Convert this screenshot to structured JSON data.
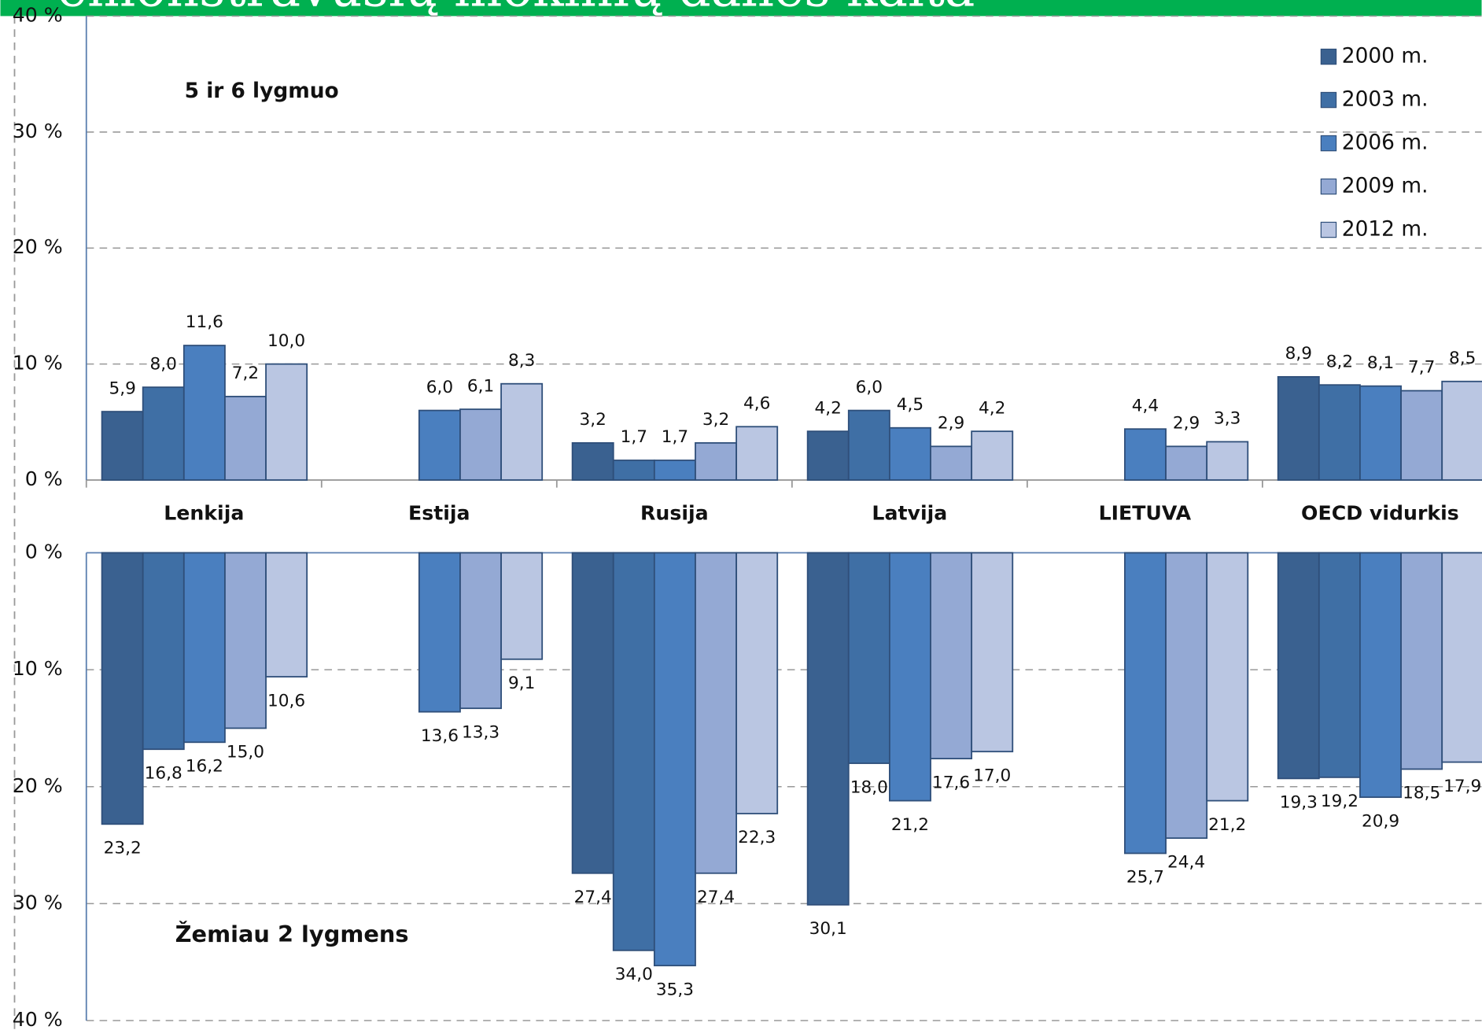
{
  "chart_data": [
    {
      "type": "bar",
      "title": "emonstravusių mokinių dalies kaita",
      "subtitle": "5 ir 6 lygmuo",
      "categories": [
        "Lenkija",
        "Estija",
        "Rusija",
        "Latvija",
        "LIETUVA",
        "OECD vidurkis"
      ],
      "series": [
        {
          "name": "2000 m.",
          "color": "#3a6190",
          "values": [
            5.9,
            null,
            3.2,
            4.2,
            null,
            8.9
          ],
          "value_labels": [
            "5,9",
            null,
            "3,2",
            "4,2",
            null,
            "8,9"
          ]
        },
        {
          "name": "2003 m.",
          "color": "#3f6fa5",
          "values": [
            8.0,
            null,
            1.7,
            6.0,
            null,
            8.2
          ],
          "value_labels": [
            "8,0",
            null,
            "1,7",
            "6,0",
            null,
            "8,2"
          ]
        },
        {
          "name": "2006 m.",
          "color": "#4a7fbf",
          "values": [
            11.6,
            6.0,
            1.7,
            4.5,
            4.4,
            8.1
          ],
          "value_labels": [
            "11,6",
            "6,0",
            "1,7",
            "4,5",
            "4,4",
            "8,1"
          ]
        },
        {
          "name": "2009 m.",
          "color": "#94a9d4",
          "values": [
            7.2,
            6.1,
            3.2,
            2.9,
            2.9,
            7.7
          ],
          "value_labels": [
            "7,2",
            "6,1",
            "3,2",
            "2,9",
            "2,9",
            "7,7"
          ]
        },
        {
          "name": "2012 m.",
          "color": "#bac6e2",
          "values": [
            10.0,
            8.3,
            4.6,
            4.2,
            3.3,
            8.5
          ],
          "value_labels": [
            "10,0",
            "8,3",
            "4,6",
            "4,2",
            "3,3",
            "8,5"
          ]
        }
      ],
      "ylim": [
        0,
        40
      ],
      "yticks": [
        {
          "value": 0,
          "label": "0 %"
        },
        {
          "value": 10,
          "label": "10 %"
        },
        {
          "value": 20,
          "label": "20 %"
        },
        {
          "value": 30,
          "label": "30 %"
        },
        {
          "value": 40,
          "label": "40 %"
        }
      ],
      "grid": true,
      "legend": "upper right",
      "y_inverted": false
    },
    {
      "type": "bar",
      "subtitle": "Žemiau 2 lygmens",
      "series": [
        {
          "name": "2000 m.",
          "color": "#3a6190",
          "values": [
            23.2,
            null,
            27.4,
            30.1,
            null,
            19.3
          ],
          "value_labels": [
            "23,2",
            null,
            "27,4",
            "30,1",
            null,
            "19,3"
          ]
        },
        {
          "name": "2003 m.",
          "color": "#3f6fa5",
          "values": [
            16.8,
            null,
            34.0,
            18.0,
            null,
            19.2
          ],
          "value_labels": [
            "16,8",
            null,
            "34,0",
            "18,0",
            null,
            "19,2"
          ]
        },
        {
          "name": "2006 m.",
          "color": "#4a7fbf",
          "values": [
            16.2,
            13.6,
            35.3,
            21.2,
            25.7,
            20.9
          ],
          "value_labels": [
            "16,2",
            "13,6",
            "35,3",
            "21,2",
            "25,7",
            "20,9"
          ]
        },
        {
          "name": "2009 m.",
          "color": "#94a9d4",
          "values": [
            15.0,
            13.3,
            27.4,
            17.6,
            24.4,
            18.5
          ],
          "value_labels": [
            "15,0",
            "13,3",
            "27,4",
            "17,6",
            "24,4",
            "18,5"
          ]
        },
        {
          "name": "2012 m.",
          "color": "#bac6e2",
          "values": [
            10.6,
            9.1,
            22.3,
            17.0,
            21.2,
            17.9
          ],
          "value_labels": [
            "10,6",
            "9,1",
            "22,3",
            "17,0",
            "21,2",
            "17,9"
          ]
        }
      ],
      "ylim": [
        0,
        40
      ],
      "yticks": [
        {
          "value": 0,
          "label": "0 %"
        },
        {
          "value": 10,
          "label": "10 %"
        },
        {
          "value": 20,
          "label": "20 %"
        },
        {
          "value": 30,
          "label": "30 %"
        },
        {
          "value": 40,
          "label": "40 %"
        }
      ],
      "grid": true,
      "y_inverted": true
    }
  ]
}
